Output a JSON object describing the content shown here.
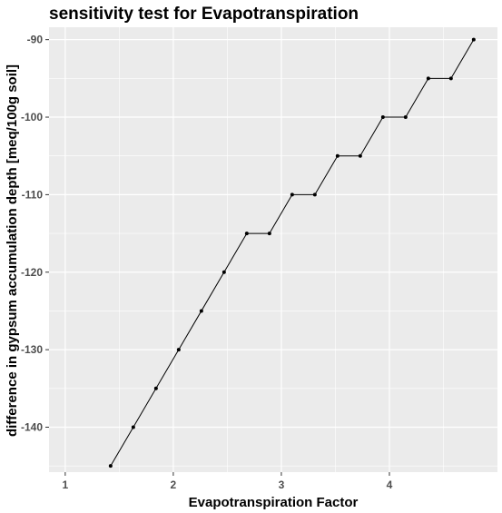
{
  "chart_data": {
    "type": "line",
    "title": "sensitivity test for Evapotranspiration",
    "xlabel": "Evapotranspiration Factor",
    "ylabel": "difference in gypsum accumulation depth [meq/100g soil]",
    "xlim": [
      0.85,
      5.0
    ],
    "ylim": [
      -145.8,
      -88.4
    ],
    "xticks": [
      1,
      2,
      3,
      4
    ],
    "xtick_labels": [
      "1",
      "2",
      "3",
      "4"
    ],
    "yticks": [
      -140,
      -130,
      -120,
      -110,
      -100,
      -90
    ],
    "ytick_labels": [
      "-140",
      "-130",
      "-120",
      "-110",
      "-100",
      "-90"
    ],
    "grid": true,
    "legend": "none",
    "panel_color": "#ebebeb",
    "grid_color": "#ffffff",
    "line_color": "#000000",
    "series": [
      {
        "x": [
          1.42,
          1.63,
          1.84,
          2.05,
          2.26,
          2.47,
          2.68,
          2.89,
          3.1,
          3.31,
          3.52,
          3.73,
          3.94,
          4.15,
          4.36,
          4.57,
          4.78
        ],
        "y": [
          -145,
          -140,
          -135,
          -130,
          -125,
          -120,
          -115,
          -115,
          -110,
          -110,
          -105,
          -105,
          -100,
          -100,
          -95,
          -95,
          -90
        ]
      }
    ]
  }
}
